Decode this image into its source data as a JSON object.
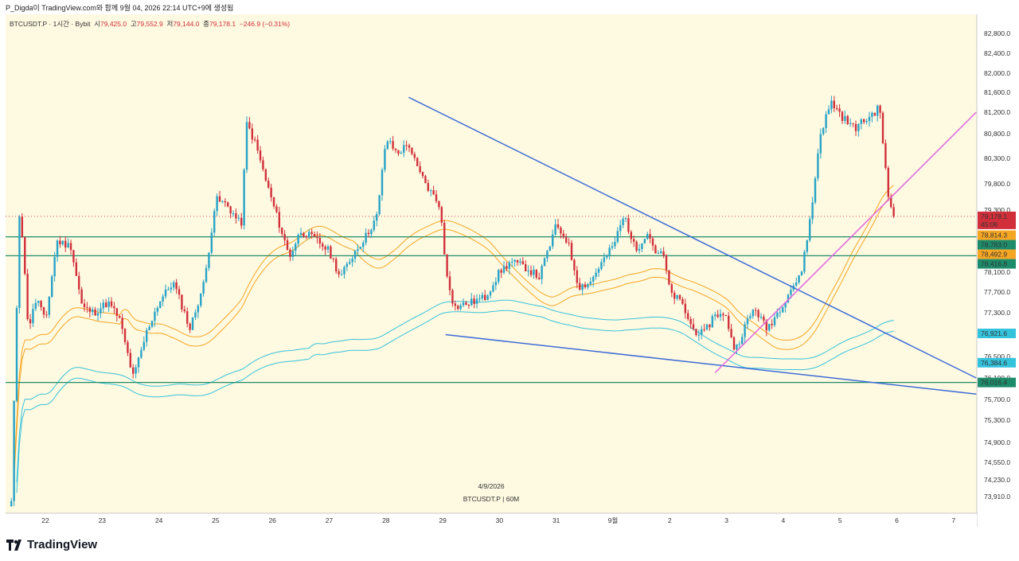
{
  "caption": "P_Digda이 TradingView.com와 함께 9월 04, 2026 22:14 UTC+9에 생성됨",
  "legend": {
    "symbol": "BTCUSDT.P · 1시간 · Bybit",
    "open_label": "시",
    "open": "79,425.0",
    "high_label": "고",
    "high": "79,552.9",
    "low_label": "저",
    "low": "79,144.0",
    "close_label": "종",
    "close": "79,178.1",
    "change": "−246.9 (−0.31%)"
  },
  "watermark": {
    "date": "4/9/2026",
    "symbol_tf": "BTCUSDT.P | 60M"
  },
  "brand": "TradingView",
  "colors": {
    "background": "#fef9e1",
    "up": "#26a3c7",
    "down": "#d1303b",
    "support_line": "#1e8c6b",
    "trendline": "#3d6cd8",
    "uptrend": "#e066e0",
    "orange_band": "#f5a623",
    "cyan_band": "#35c3dc"
  },
  "chart_data": {
    "type": "candlestick",
    "title": "BTCUSDT.P · 1시간 · Bybit",
    "x_ticks": [
      "22",
      "23",
      "24",
      "25",
      "26",
      "27",
      "28",
      "29",
      "30",
      "31",
      "9월",
      "2",
      "3",
      "4",
      "5",
      "6",
      "7"
    ],
    "y_ticks": [
      "82,800.0",
      "82,400.0",
      "82,000.0",
      "81,600.0",
      "81,200.0",
      "80,800.0",
      "80,300.0",
      "79,800.0",
      "79,300.0",
      "78,100.0",
      "77,700.0",
      "77,300.0",
      "76,500.0",
      "76,100.0",
      "75,700.0",
      "75,300.0",
      "74,900.0",
      "74,550.0",
      "74,230.0",
      "73,910.0"
    ],
    "ylim": [
      73700,
      83000
    ],
    "xlim": [
      21.3,
      7.4
    ],
    "grid": false,
    "price_line": 79178.1,
    "horizontal_levels": [
      78783.0,
      78416.8,
      76016.4
    ],
    "price_labels": [
      {
        "text": "79,178.1",
        "sub": "45:06",
        "value": 79178.1,
        "color": "#d1303b"
      },
      {
        "text": "78,814.3",
        "value": 78814.3,
        "color": "#f5a623"
      },
      {
        "text": "78,783.0",
        "value": 78783.0,
        "color": "#1e8c6b"
      },
      {
        "text": "78,492.9",
        "value": 78492.9,
        "color": "#f5a623"
      },
      {
        "text": "78,416.8",
        "value": 78416.8,
        "color": "#1e8c6b"
      },
      {
        "text": "76,921.6",
        "value": 76921.6,
        "color": "#35c3dc"
      },
      {
        "text": "76,384.6",
        "value": 76384.6,
        "color": "#35c3dc"
      },
      {
        "text": "76,016.4",
        "value": 76016.4,
        "color": "#1e8c6b"
      }
    ],
    "trendlines": [
      {
        "name": "",
        "from": [
          28.4,
          81500
        ],
        "to": [
          7.4,
          76100
        ],
        "color": "#3d6cd8"
      },
      {
        "name": "",
        "from": [
          29.05,
          76900
        ],
        "to": [
          7.4,
          75800
        ],
        "color": "#3d6cd8"
      },
      {
        "name": "",
        "from": [
          2.8,
          76200
        ],
        "to": [
          7.4,
          81200
        ],
        "color": "#e066e0"
      }
    ],
    "anchors": [
      [
        "21.4",
        73800
      ],
      [
        "21.55",
        79500
      ],
      [
        "21.7",
        77000
      ],
      [
        "21.85",
        77600
      ],
      [
        "22.0",
        77100
      ],
      [
        "22.2",
        78700
      ],
      [
        "22.45",
        78600
      ],
      [
        "22.65",
        77400
      ],
      [
        "22.85",
        77300
      ],
      [
        "23.1",
        77500
      ],
      [
        "23.3",
        77200
      ],
      [
        "23.55",
        76100
      ],
      [
        "23.8",
        77000
      ],
      [
        "24.0",
        77500
      ],
      [
        "24.25",
        77900
      ],
      [
        "24.55",
        77000
      ],
      [
        "24.8",
        77900
      ],
      [
        "25.0",
        79500
      ],
      [
        "25.2",
        79400
      ],
      [
        "25.45",
        79000
      ],
      [
        "25.55",
        81000
      ],
      [
        "25.7",
        80600
      ],
      [
        "25.9",
        79800
      ],
      [
        "26.1",
        79100
      ],
      [
        "26.3",
        78400
      ],
      [
        "26.5",
        78900
      ],
      [
        "26.8",
        78700
      ],
      [
        "27.0",
        78500
      ],
      [
        "27.2",
        78000
      ],
      [
        "27.45",
        78500
      ],
      [
        "27.65",
        78800
      ],
      [
        "27.85",
        79200
      ],
      [
        "28.0",
        80700
      ],
      [
        "28.2",
        80400
      ],
      [
        "28.4",
        80600
      ],
      [
        "28.55",
        80100
      ],
      [
        "28.75",
        79700
      ],
      [
        "28.95",
        79400
      ],
      [
        "29.05",
        78200
      ],
      [
        "29.2",
        77400
      ],
      [
        "29.5",
        77500
      ],
      [
        "29.75",
        77600
      ],
      [
        "30.0",
        78100
      ],
      [
        "30.2",
        78300
      ],
      [
        "30.45",
        78200
      ],
      [
        "30.7",
        78000
      ],
      [
        "30.85",
        78500
      ],
      [
        "31.0",
        79000
      ],
      [
        "31.2",
        78700
      ],
      [
        "31.4",
        77800
      ],
      [
        "31.6",
        77900
      ],
      [
        "31.75",
        78200
      ],
      [
        "32.0",
        78600
      ],
      [
        "32.2",
        79200
      ],
      [
        "32.4",
        78500
      ],
      [
        "32.6",
        78900
      ],
      [
        "32.75",
        78500
      ],
      [
        "32.9",
        78400
      ],
      [
        "33.0",
        77700
      ],
      [
        "33.2",
        77500
      ],
      [
        "33.4",
        77000
      ],
      [
        "33.6",
        76900
      ],
      [
        "33.8",
        77300
      ],
      [
        "34.0",
        77200
      ],
      [
        "34.15",
        76600
      ],
      [
        "34.3",
        77000
      ],
      [
        "34.5",
        77400
      ],
      [
        "34.7",
        77000
      ],
      [
        "34.9",
        77300
      ],
      [
        "35.15",
        77800
      ],
      [
        "35.3",
        78000
      ],
      [
        "35.5",
        79300
      ],
      [
        "35.65",
        80800
      ],
      [
        "35.85",
        81400
      ],
      [
        "36.05",
        81100
      ],
      [
        "36.25",
        80900
      ],
      [
        "36.5",
        81100
      ],
      [
        "36.7",
        81300
      ],
      [
        "36.85",
        79500
      ],
      [
        "36.95",
        79200
      ]
    ]
  }
}
